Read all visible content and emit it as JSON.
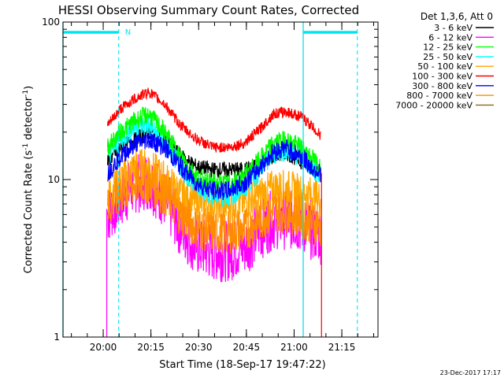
{
  "chart_data": {
    "type": "line",
    "title": "HESSI Observing Summary Count Rates, Corrected",
    "xlabel": "Start Time (18-Sep-17 19:47:22)",
    "ylabel_prefix": "Corrected Count Rate (s",
    "ylabel_sup1": "-1",
    "ylabel_mid": " detector",
    "ylabel_sup2": "-1",
    "ylabel_suffix": ")",
    "x_start": "19:47:22",
    "x_range_minutes": [
      0,
      99
    ],
    "y_scale": "log",
    "ylim": [
      1,
      100
    ],
    "y_ticks": [
      {
        "value": 1,
        "label": "1"
      },
      {
        "value": 10,
        "label": "10"
      },
      {
        "value": 100,
        "label": "100"
      }
    ],
    "x_ticks": [
      {
        "minute": 12.633,
        "label": "20:00"
      },
      {
        "minute": 27.633,
        "label": "20:15"
      },
      {
        "minute": 42.633,
        "label": "20:30"
      },
      {
        "minute": 57.633,
        "label": "20:45"
      },
      {
        "minute": 72.633,
        "label": "21:00"
      },
      {
        "minute": 87.633,
        "label": "21:15"
      }
    ],
    "data_window_minutes": [
      14,
      81
    ],
    "night_markers": {
      "cyan_solid_minutes": [
        0,
        75.5
      ],
      "cyan_dashed_minutes": [
        17.5,
        92.5
      ],
      "top_bar_segments": [
        [
          0,
          17.5
        ],
        [
          75.5,
          92.5
        ]
      ],
      "label": "N",
      "label_minute": 19.5
    },
    "legend_header": "Det 1,3,6, Att 0",
    "series": [
      {
        "name": "3 - 6 keV",
        "color": "#000000",
        "x": [
          14,
          18,
          23,
          27,
          32,
          37,
          42,
          47,
          52,
          57,
          62,
          66,
          70,
          75,
          78,
          81
        ],
        "y": [
          13,
          16,
          18,
          20,
          18,
          14,
          12,
          11.5,
          11.5,
          11.5,
          12.5,
          14,
          15,
          13,
          12,
          11
        ]
      },
      {
        "name": "6 - 12 keV",
        "color": "#ff00ff",
        "x": [
          14,
          18,
          23,
          27,
          32,
          37,
          42,
          47,
          52,
          57,
          62,
          66,
          70,
          75,
          78,
          81
        ],
        "y": [
          6,
          7.5,
          9.5,
          10,
          7.5,
          5,
          3.8,
          3.5,
          3.5,
          3.8,
          4.8,
          5.6,
          5.6,
          5.3,
          4.8,
          4.5
        ]
      },
      {
        "name": "12 - 25 keV",
        "color": "#00ff00",
        "x": [
          14,
          18,
          23,
          27,
          32,
          37,
          42,
          47,
          52,
          57,
          62,
          66,
          70,
          75,
          78,
          81
        ],
        "y": [
          16,
          20,
          24,
          26,
          20,
          14,
          10.5,
          9.5,
          9.5,
          10.5,
          13.5,
          17,
          18,
          16,
          14,
          12
        ]
      },
      {
        "name": "25 - 50 keV",
        "color": "#00ffff",
        "x": [
          14,
          18,
          23,
          27,
          32,
          37,
          42,
          47,
          52,
          57,
          62,
          66,
          70,
          75,
          78,
          81
        ],
        "y": [
          14,
          18,
          22,
          22,
          17,
          12,
          9,
          7.8,
          7.8,
          8.8,
          11.5,
          14.5,
          15.5,
          14,
          12,
          10.5
        ]
      },
      {
        "name": "50 - 100 keV",
        "color": "#ffa500",
        "x": [
          14,
          18,
          23,
          27,
          32,
          37,
          42,
          47,
          52,
          57,
          62,
          66,
          70,
          75,
          78,
          81
        ],
        "y": [
          8,
          10,
          12,
          12,
          10,
          8,
          7.2,
          7,
          7,
          7.2,
          8,
          8.8,
          8.8,
          8.3,
          8,
          7.5
        ]
      },
      {
        "name": "100 - 300 keV",
        "color": "#ff0000",
        "x": [
          14,
          18,
          23,
          27,
          32,
          37,
          42,
          47,
          52,
          57,
          62,
          66,
          70,
          75,
          78,
          81
        ],
        "y": [
          22,
          28,
          33,
          36,
          30,
          22,
          18,
          16,
          16,
          17,
          21,
          26,
          27,
          25,
          22,
          19
        ]
      },
      {
        "name": "300 - 800 keV",
        "color": "#0000ff",
        "x": [
          14,
          18,
          23,
          27,
          32,
          37,
          42,
          47,
          52,
          57,
          62,
          66,
          70,
          75,
          78,
          81
        ],
        "y": [
          11,
          14,
          17,
          18,
          16,
          12,
          9.5,
          8.5,
          8.5,
          9.5,
          12,
          15,
          16,
          14,
          12,
          11
        ]
      },
      {
        "name": "800 - 7000 keV",
        "color": "#ff8c00",
        "x": [
          14,
          18,
          23,
          27,
          32,
          37,
          42,
          47,
          52,
          57,
          62,
          66,
          70,
          75,
          78,
          81
        ],
        "y": [
          6.5,
          8,
          9.5,
          9.5,
          8,
          6,
          5,
          4.6,
          4.6,
          4.8,
          5.6,
          6.3,
          6.3,
          5.8,
          5.3,
          5
        ]
      },
      {
        "name": "7000 - 20000 keV",
        "color": "#8b6914",
        "x": [],
        "y": []
      }
    ],
    "footer_date": "23-Dec-2017 17:17"
  }
}
